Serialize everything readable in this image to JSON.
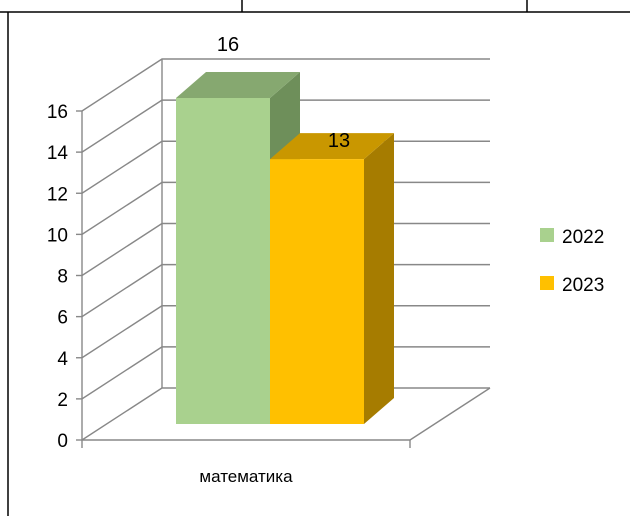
{
  "chart_data": {
    "type": "bar",
    "categories": [
      "математика"
    ],
    "series": [
      {
        "name": "2022",
        "values": [
          16
        ],
        "color": "#a9d18e",
        "side_color": "#6e8f5a",
        "top_color": "#86a870"
      },
      {
        "name": "2023",
        "values": [
          13
        ],
        "color": "#ffc000",
        "side_color": "#a67c00",
        "top_color": "#c99700"
      }
    ],
    "ylim": [
      0,
      16
    ],
    "y_ticks": [
      "0",
      "2",
      "4",
      "6",
      "8",
      "10",
      "12",
      "14",
      "16"
    ],
    "grid": true,
    "legend_position": "right",
    "data_labels": [
      "16",
      "13"
    ]
  }
}
